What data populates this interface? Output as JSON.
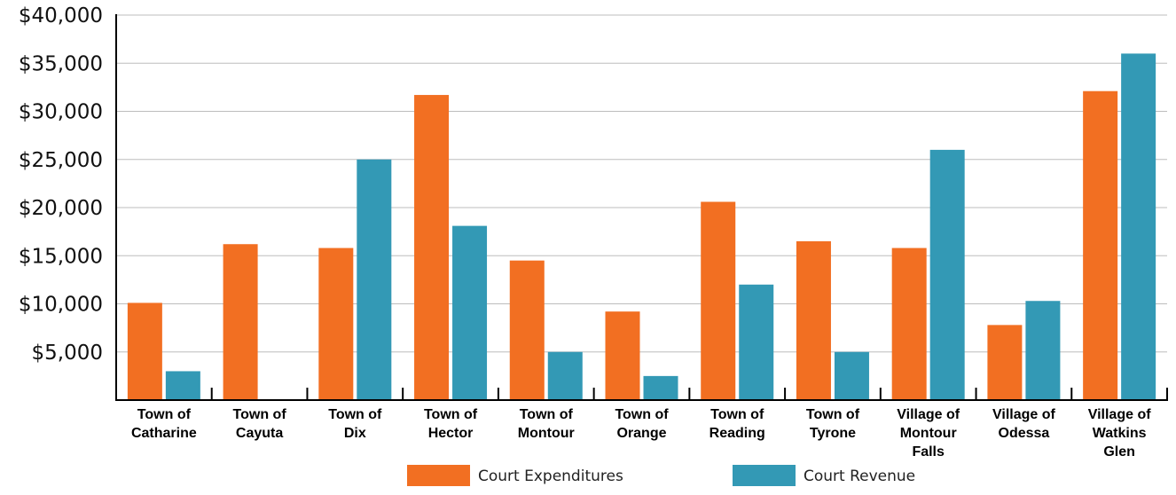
{
  "chart_data": {
    "type": "bar",
    "title": "",
    "xlabel": "",
    "ylabel": "",
    "ylim": [
      0,
      40000
    ],
    "yticks": [
      {
        "value": 5000,
        "label": "$5,000"
      },
      {
        "value": 10000,
        "label": "$10,000"
      },
      {
        "value": 15000,
        "label": "$15,000"
      },
      {
        "value": 20000,
        "label": "$20,000"
      },
      {
        "value": 25000,
        "label": "$25,000"
      },
      {
        "value": 30000,
        "label": "$30,000"
      },
      {
        "value": 35000,
        "label": "$35,000"
      },
      {
        "value": 40000,
        "label": "$40,000"
      }
    ],
    "grid": true,
    "legend_position": "bottom",
    "categories": [
      [
        "Town of",
        "Catharine"
      ],
      [
        "Town of",
        "Cayuta"
      ],
      [
        "Town of",
        "Dix"
      ],
      [
        "Town of",
        "Hector"
      ],
      [
        "Town of",
        "Montour"
      ],
      [
        "Town of",
        "Orange"
      ],
      [
        "Town of",
        "Reading"
      ],
      [
        "Town of",
        "Tyrone"
      ],
      [
        "Village of",
        "Montour",
        "Falls"
      ],
      [
        "Village of",
        "Odessa"
      ],
      [
        "Village of",
        "Watkins",
        "Glen"
      ]
    ],
    "series": [
      {
        "name": "Court Expenditures",
        "color": "#f26f22",
        "values": [
          10100,
          16200,
          15800,
          31700,
          14500,
          9200,
          20600,
          16500,
          15800,
          7800,
          32100
        ]
      },
      {
        "name": "Court Revenue",
        "color": "#3399b5",
        "values": [
          3000,
          0,
          25000,
          18100,
          5000,
          2500,
          12000,
          5000,
          26000,
          10300,
          36000
        ]
      }
    ]
  }
}
